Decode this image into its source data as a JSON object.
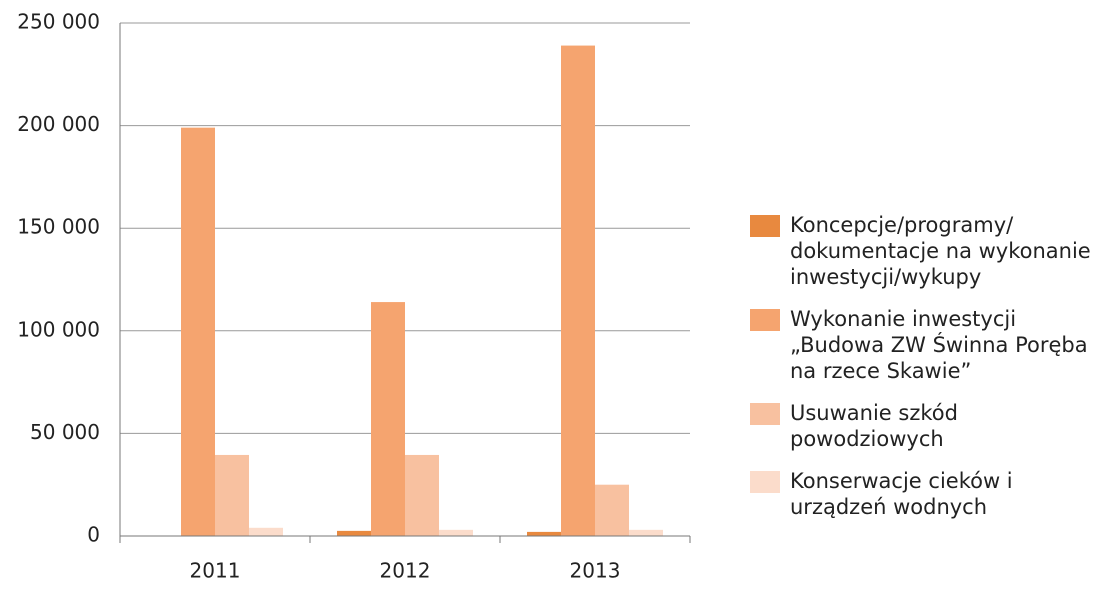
{
  "chart_data": {
    "type": "bar",
    "categories": [
      "2011",
      "2012",
      "2013"
    ],
    "series": [
      {
        "name": "Koncepcje/programy/ dokumentacje na wykonanie inwestycji/wykupy",
        "color": "#e8893f",
        "values": [
          0,
          2500,
          2000
        ]
      },
      {
        "name": "Wykonanie inwestycji „Budowa ZW Świnna Poręba na rzece Skawie”",
        "color": "#f5a46f",
        "values": [
          199000,
          114000,
          239000
        ]
      },
      {
        "name": "Usuwanie szkód powodziowych",
        "color": "#f8c1a0",
        "values": [
          39500,
          39500,
          25000
        ]
      },
      {
        "name": "Konserwacje cieków i urządzeń wodnych",
        "color": "#fbdccb",
        "values": [
          4000,
          3000,
          3000
        ]
      }
    ],
    "ylim": [
      0,
      250000
    ],
    "yticks": [
      0,
      {
        "value": 50000,
        "label": "50 000"
      },
      {
        "value": 100000,
        "label": "100 000"
      },
      {
        "value": 150000,
        "label": "150 000"
      },
      {
        "value": 200000,
        "label": "200 000"
      },
      {
        "value": 250000,
        "label": "250 000"
      }
    ],
    "grid": true,
    "legend": "right"
  }
}
